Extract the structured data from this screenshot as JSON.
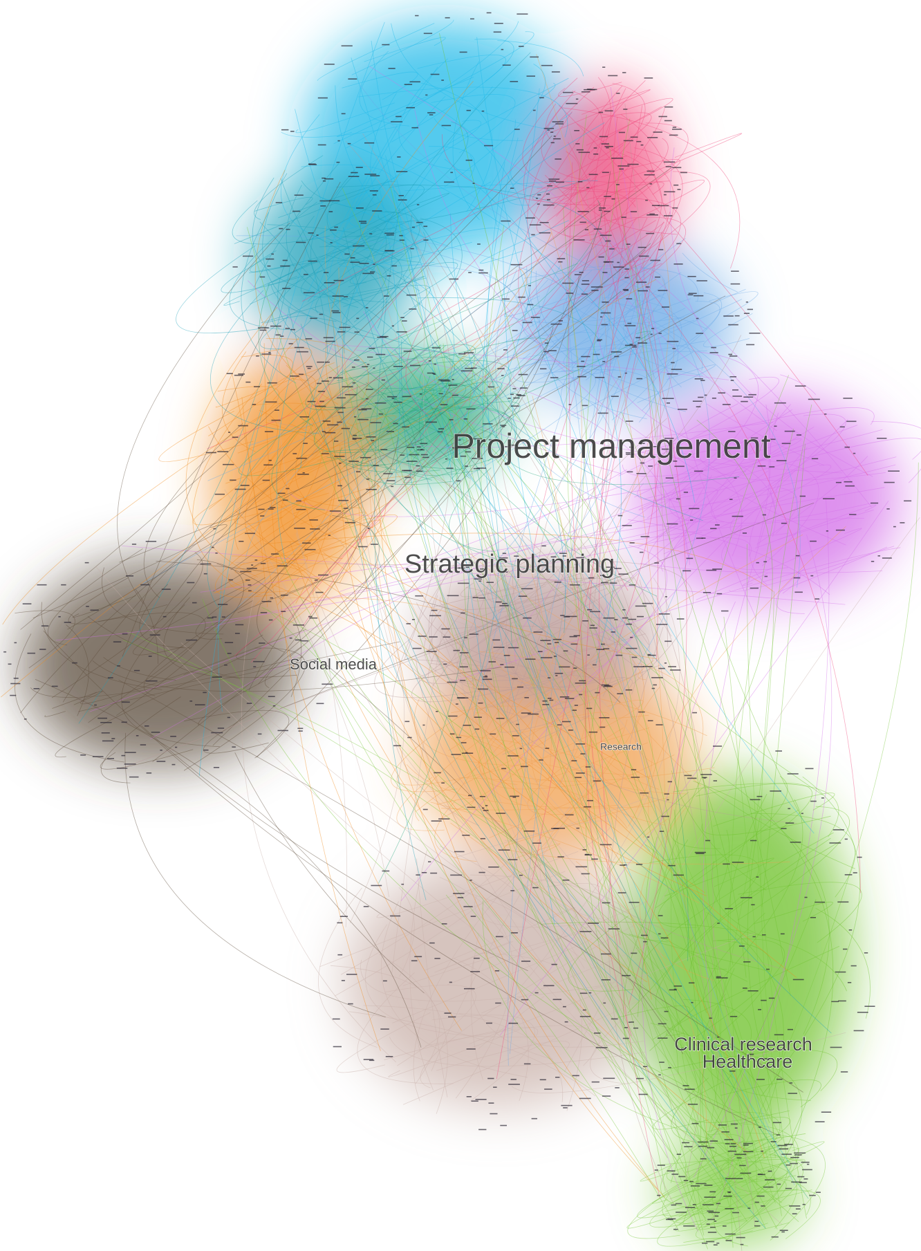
{
  "labels": [
    {
      "text": "Project management"
    },
    {
      "text": "Strategic planning"
    },
    {
      "text": "Social media"
    },
    {
      "text": "Research"
    },
    {
      "text": "Clinical research"
    },
    {
      "text": "Healthcare"
    }
  ]
}
